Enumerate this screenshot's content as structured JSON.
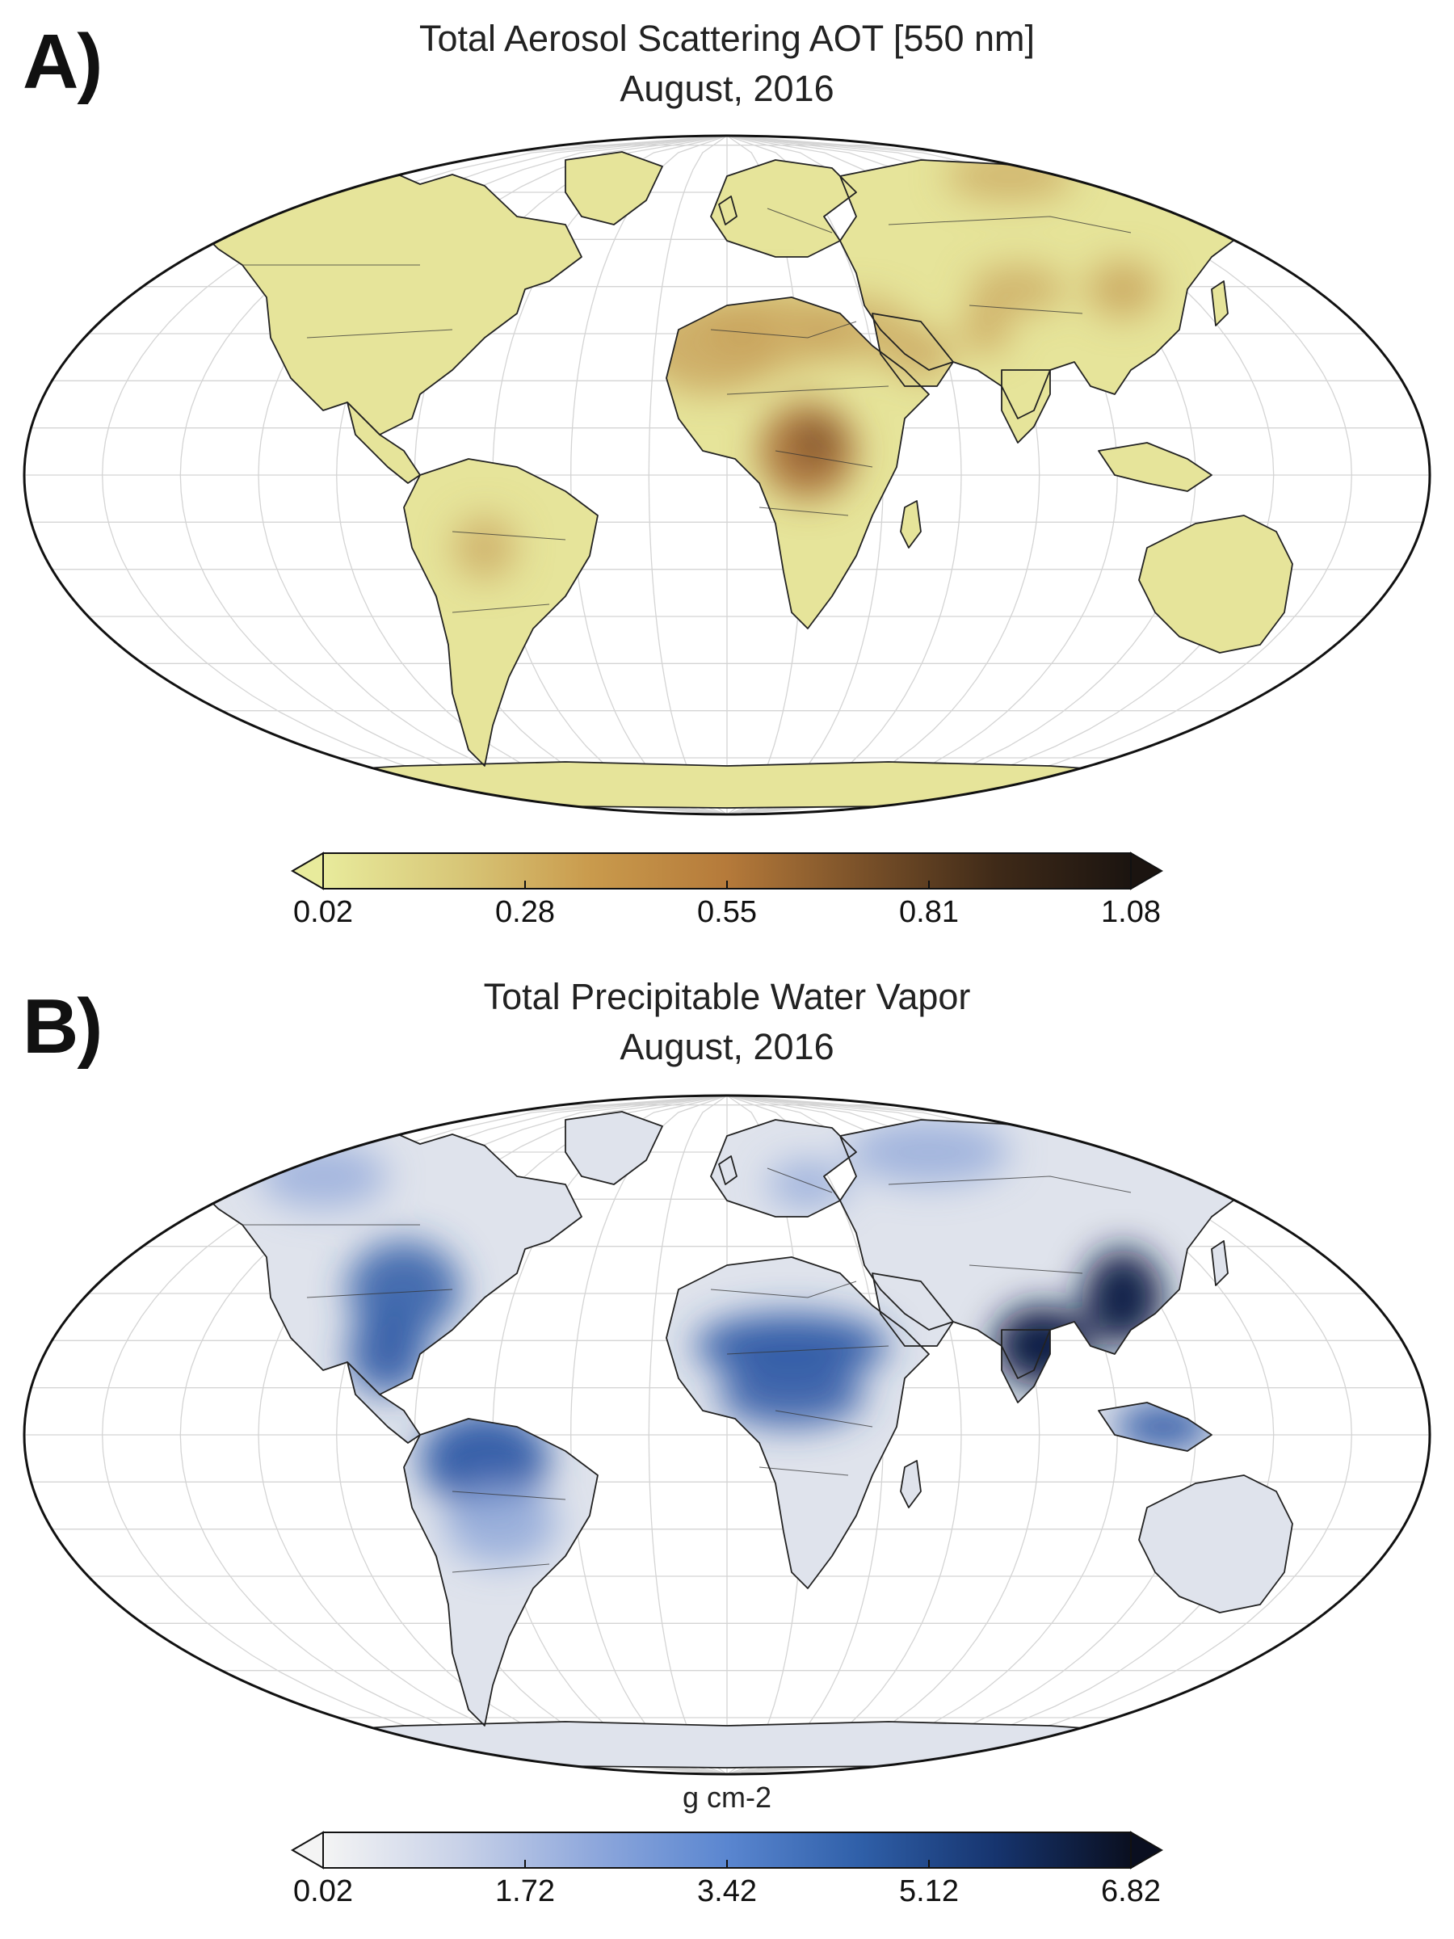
{
  "panels": [
    {
      "letter": "A)",
      "title": "Total Aerosol Scattering AOT [550 nm]",
      "subtitle": "August, 2016",
      "colorbar": {
        "units": "",
        "ticks": [
          "0.02",
          "0.28",
          "0.55",
          "0.81",
          "1.08"
        ],
        "min": 0.02,
        "max": 1.08,
        "colors": [
          "#e8eb9c",
          "#d8c778",
          "#c99a4c",
          "#b57a3a",
          "#7a5129",
          "#3f2a18",
          "#1b1410"
        ],
        "extend": "both"
      },
      "palette": {
        "land_low": "#e6e49a",
        "land_mid": "#c8a25c",
        "land_high": "#a9703a",
        "land_peak": "#5a3a22"
      }
    },
    {
      "letter": "B)",
      "title": "Total Precipitable Water Vapor",
      "subtitle": "August, 2016",
      "colorbar": {
        "units": "g cm-2",
        "ticks": [
          "0.02",
          "1.72",
          "3.42",
          "5.12",
          "6.82"
        ],
        "min": 0.02,
        "max": 6.82,
        "colors": [
          "#f4f4f4",
          "#c9d2e8",
          "#8fa8dc",
          "#5a86d0",
          "#2f5fa8",
          "#16346e",
          "#0a0f20"
        ],
        "extend": "both"
      },
      "palette": {
        "land_low": "#dfe3ec",
        "land_mid": "#8ea6d8",
        "land_high": "#2f5aa6",
        "land_peak": "#0d1d45"
      }
    }
  ]
}
